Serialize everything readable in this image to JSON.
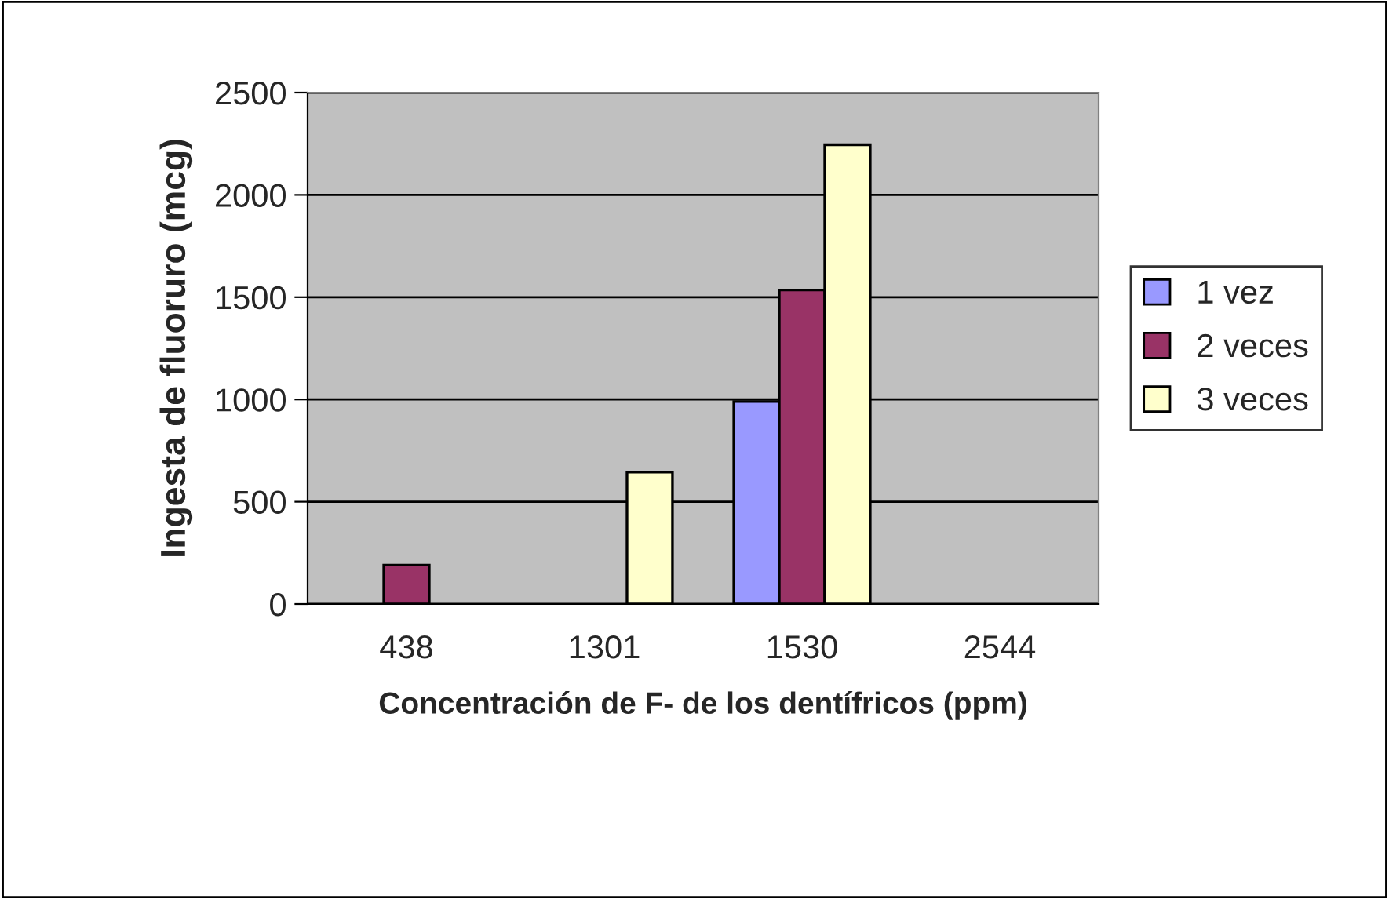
{
  "chart_data": {
    "type": "bar",
    "xlabel": "Concentración de F- de los dentífricos (ppm)",
    "ylabel": "Ingesta de fluoruro (mcg)",
    "categories": [
      "438",
      "1301",
      "1530",
      "2544"
    ],
    "series": [
      {
        "name": "1 vez",
        "color": "#9999ff",
        "values": [
          null,
          null,
          990,
          null
        ]
      },
      {
        "name": "2 veces",
        "color": "#993366",
        "values": [
          190,
          null,
          1535,
          null
        ]
      },
      {
        "name": "3 veces",
        "color": "#ffffcc",
        "values": [
          null,
          645,
          2245,
          null
        ]
      }
    ],
    "ylim": [
      0,
      2500
    ],
    "yticks": [
      0,
      500,
      1000,
      1500,
      2000,
      2500
    ],
    "grid": "y",
    "legend": "right"
  }
}
